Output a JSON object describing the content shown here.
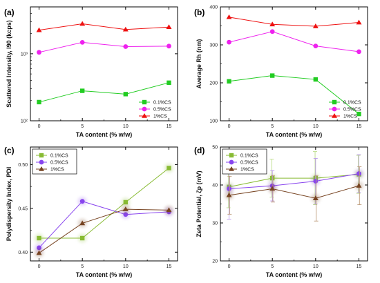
{
  "chart_data": [
    {
      "panel": "(a)",
      "type": "line",
      "x": [
        0,
        5,
        10,
        15
      ],
      "xlabel": "TA content (% w/w)",
      "ylabel": "Scattered Intensity, I90 (kcps)",
      "yscale": "log",
      "ylim": [
        100,
        5000
      ],
      "yticks": [
        100,
        1000
      ],
      "ytick_labels": [
        "10²",
        "10³"
      ],
      "xlim": [
        -1,
        16
      ],
      "xticks": [
        0,
        5,
        10,
        15
      ],
      "legend_position": "bottom-right",
      "series": [
        {
          "name": "0.1%CS",
          "values": [
            190,
            280,
            250,
            370
          ],
          "color": "#22cc22",
          "marker": "square"
        },
        {
          "name": "0.5%CS",
          "values": [
            1050,
            1480,
            1280,
            1300
          ],
          "color": "#ee22ee",
          "marker": "circle"
        },
        {
          "name": "1%CS",
          "values": [
            2250,
            2800,
            2300,
            2500
          ],
          "color": "#ee1111",
          "marker": "triangle"
        }
      ]
    },
    {
      "panel": "(b)",
      "type": "line",
      "x": [
        0,
        5,
        10,
        15
      ],
      "xlabel": "TA content (% w/w)",
      "ylabel": "Average Rh (nm)",
      "yscale": "linear",
      "ylim": [
        100,
        400
      ],
      "yticks": [
        100,
        200,
        300,
        400
      ],
      "xlim": [
        -1,
        16
      ],
      "xticks": [
        0,
        5,
        10,
        15
      ],
      "legend_position": "bottom-right",
      "series": [
        {
          "name": "0.1%CS",
          "values": [
            204,
            219,
            209,
            118
          ],
          "color": "#22cc22",
          "marker": "square"
        },
        {
          "name": "0.5%CS",
          "values": [
            307,
            335,
            297,
            282
          ],
          "color": "#ee22ee",
          "marker": "circle"
        },
        {
          "name": "1%CS",
          "values": [
            373,
            354,
            349,
            359
          ],
          "color": "#ee1111",
          "marker": "triangle"
        }
      ]
    },
    {
      "panel": "(c)",
      "type": "line",
      "x": [
        0,
        5,
        10,
        15
      ],
      "xlabel": "TA content (% w/w)",
      "ylabel": "Polydispersity Index, PDI",
      "yscale": "linear",
      "ylim": [
        0.39,
        0.52
      ],
      "yticks": [
        0.4,
        0.45,
        0.5
      ],
      "ytick_labels": [
        "0.40",
        "0.45",
        "0.50"
      ],
      "xlim": [
        -1,
        16
      ],
      "xticks": [
        0,
        5,
        10,
        15
      ],
      "legend_position": "top-left",
      "series": [
        {
          "name": "0.1%CS",
          "values": [
            0.416,
            0.416,
            0.457,
            0.496
          ],
          "color": "#88bb33",
          "marker": "square"
        },
        {
          "name": "0.5%CS",
          "values": [
            0.405,
            0.458,
            0.443,
            0.446
          ],
          "color": "#8844ee",
          "marker": "circle"
        },
        {
          "name": "1%CS",
          "values": [
            0.399,
            0.433,
            0.449,
            0.448
          ],
          "color": "#774422",
          "marker": "triangle"
        }
      ]
    },
    {
      "panel": "(d)",
      "type": "line",
      "x": [
        0,
        5,
        10,
        15
      ],
      "xlabel": "TA content (% w/w)",
      "ylabel": "Zeta Potential, ζp (mV)",
      "yscale": "linear",
      "ylim": [
        20,
        50
      ],
      "yticks": [
        20,
        30,
        40,
        50
      ],
      "xlim": [
        -1,
        16
      ],
      "xticks": [
        0,
        5,
        10,
        15
      ],
      "legend_position": "top-left",
      "error_bars": true,
      "series": [
        {
          "name": "0.1%CS",
          "values": [
            39.5,
            41.8,
            41.8,
            42.8
          ],
          "errors": [
            5.5,
            5.0,
            7.0,
            5.0
          ],
          "color": "#88bb33",
          "marker": "square"
        },
        {
          "name": "0.5%CS",
          "values": [
            39.0,
            39.8,
            41.0,
            43.0
          ],
          "errors": [
            8.0,
            4.0,
            6.0,
            5.0
          ],
          "color": "#8844ee",
          "marker": "circle"
        },
        {
          "name": "1%CS",
          "values": [
            37.3,
            39.0,
            36.5,
            39.8
          ],
          "errors": [
            5.0,
            3.5,
            6.0,
            5.0
          ],
          "color": "#774422",
          "marker": "triangle"
        }
      ]
    }
  ]
}
